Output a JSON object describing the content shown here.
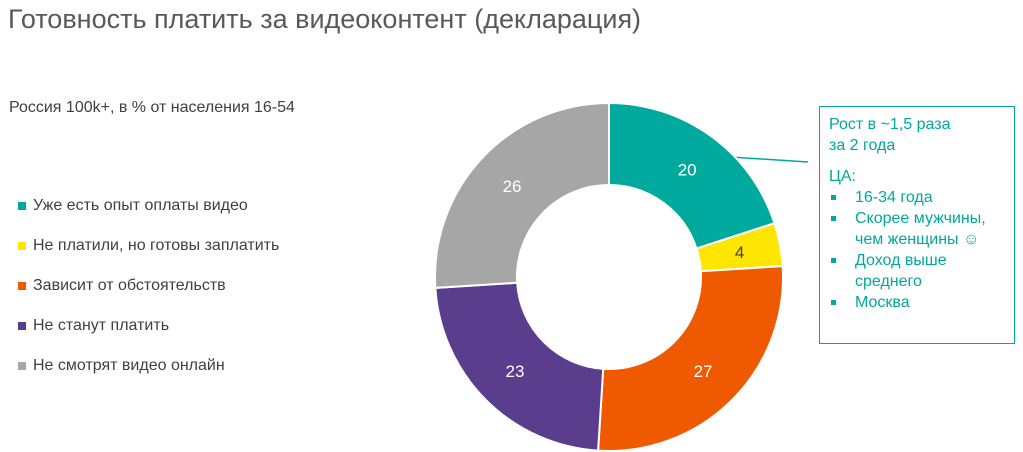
{
  "title": "Готовность платить за видеоконтент (декларация)",
  "subtitle": "Россия 100k+, в % от населения 16-54",
  "colors": {
    "teal": "#00a99d",
    "yellow": "#ffe500",
    "orange": "#ef5a00",
    "purple": "#5b3d8e",
    "gray": "#a6a6a6",
    "callout_accent": "#00a99d"
  },
  "chart_data": {
    "type": "pie",
    "variant": "donut",
    "legend_position": "left",
    "categories": [
      "Уже есть опыт оплаты видео",
      "Не платили, но готовы заплатить",
      "Зависит от обстоятельств",
      "Не станут платить",
      "Не смотрят видео онлайн"
    ],
    "values": [
      20,
      4,
      27,
      23,
      26
    ],
    "data_labels": [
      "20",
      "4",
      "27",
      "23",
      "26"
    ],
    "colors": [
      "#00a99d",
      "#ffe500",
      "#ef5a00",
      "#5b3d8e",
      "#a6a6a6"
    ],
    "label_colors": [
      "#ffffff",
      "#404040",
      "#ffffff",
      "#ffffff",
      "#ffffff"
    ]
  },
  "callout": {
    "headline_1": "Рост в ~1,5 раза",
    "headline_2": "за 2 года",
    "ta_label": "ЦА:",
    "items": [
      {
        "line1": "16-34 года",
        "line2": ""
      },
      {
        "line1": "Скорее мужчины,",
        "line2": "чем женщины ☺"
      },
      {
        "line1": "Доход выше",
        "line2": "среднего"
      },
      {
        "line1": "Москва",
        "line2": ""
      }
    ]
  }
}
